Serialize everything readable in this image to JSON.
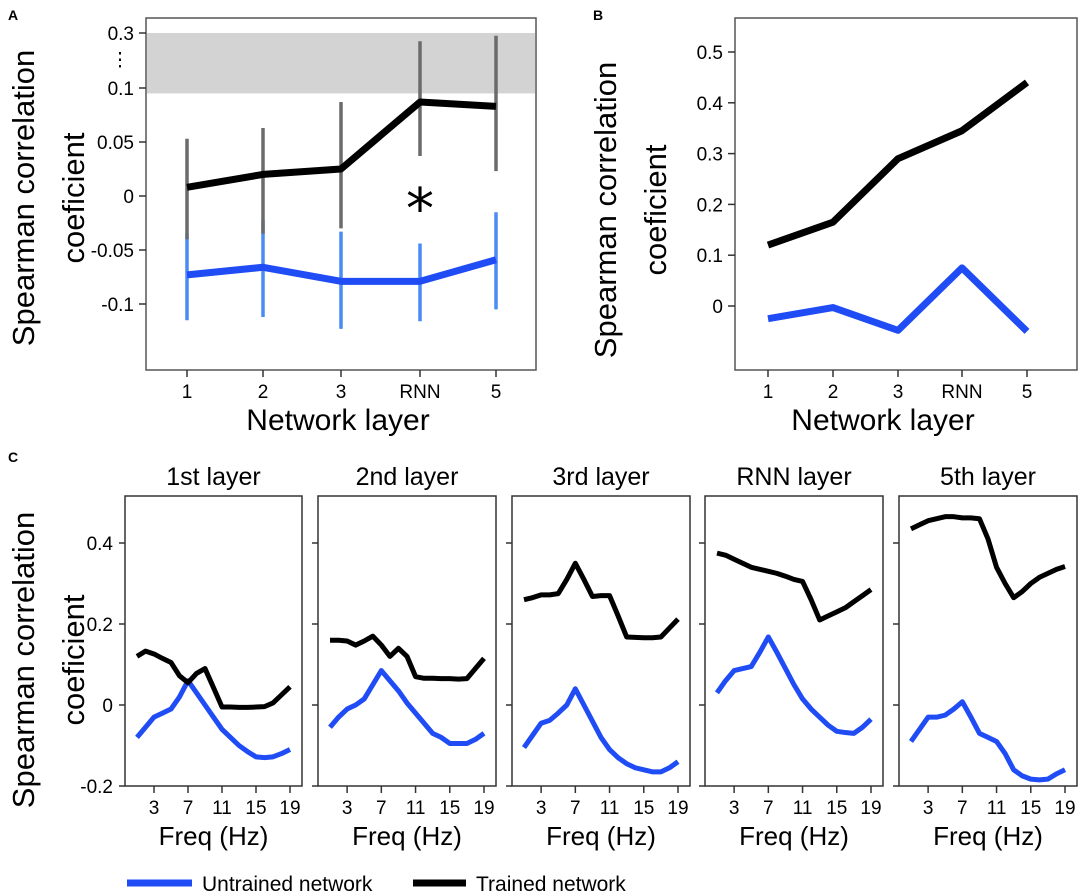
{
  "panels": {
    "a": "A",
    "b": "B",
    "c": "C"
  },
  "colors": {
    "untrained": "#1f4cf5",
    "trained": "#000000",
    "errUntrained": "#4a8cf5",
    "errTrained": "#6b6b6b",
    "band": "#d3d3d3"
  },
  "legend": {
    "untrained": "Untrained network",
    "trained": "Trained network"
  },
  "chart_data": [
    {
      "id": "A",
      "type": "line",
      "categories": [
        "1",
        "2",
        "3",
        "RNN",
        "5"
      ],
      "xlabel": "Network layer",
      "ylabel_line1": "Spearman correlation",
      "ylabel_line2": "coeficient",
      "y_ticks": [
        "0.3",
        "0.1",
        "0.05",
        "0",
        "-0.05",
        "-0.1"
      ],
      "axis_break": "⋮",
      "annotation": "*",
      "noise_ceiling_band": [
        0.095,
        0.3
      ],
      "series": [
        {
          "name": "Untrained network",
          "values": [
            -0.073,
            -0.066,
            -0.079,
            -0.079,
            -0.059
          ],
          "err_low": [
            -0.115,
            -0.112,
            -0.123,
            -0.116,
            -0.105
          ],
          "err_high": [
            -0.035,
            -0.022,
            -0.033,
            -0.044,
            -0.015
          ]
        },
        {
          "name": "Trained network",
          "values": [
            0.008,
            0.02,
            0.025,
            0.087,
            0.083
          ],
          "err_low": [
            -0.04,
            -0.035,
            -0.03,
            0.037,
            0.023
          ],
          "err_high": [
            0.053,
            0.063,
            0.087,
            0.27,
            0.29
          ]
        }
      ]
    },
    {
      "id": "B",
      "type": "line",
      "categories": [
        "1",
        "2",
        "3",
        "RNN",
        "5"
      ],
      "xlabel": "Network layer",
      "ylabel_line1": "Spearman correlation",
      "ylabel_line2": "coeficient",
      "y_ticks": [
        "0.5",
        "0.4",
        "0.3",
        "0.2",
        "0.1",
        "0"
      ],
      "series": [
        {
          "name": "Untrained network",
          "values": [
            -0.025,
            -0.003,
            -0.048,
            0.075,
            -0.05
          ]
        },
        {
          "name": "Trained network",
          "values": [
            0.12,
            0.165,
            0.29,
            0.345,
            0.44
          ]
        }
      ]
    },
    {
      "id": "C",
      "type": "line",
      "x": [
        1,
        2,
        3,
        4,
        5,
        6,
        7,
        8,
        9,
        10,
        11,
        12,
        13,
        14,
        15,
        16,
        17,
        18,
        19
      ],
      "x_ticks": [
        "3",
        "7",
        "11",
        "15",
        "19"
      ],
      "y_ticks": [
        "0.4",
        "0.2",
        "0",
        "-0.2"
      ],
      "ylim": [
        -0.2,
        0.5
      ],
      "xlabel": "Freq (Hz)",
      "ylabel_line1": "Spearman correlation",
      "ylabel_line2": "coeficient",
      "subplots": [
        {
          "title": "1st layer",
          "trained": [
            0.12,
            0.133,
            0.126,
            0.115,
            0.105,
            0.072,
            0.055,
            0.078,
            0.09,
            0.043,
            -0.005,
            -0.005,
            -0.006,
            -0.006,
            -0.005,
            -0.004,
            0.005,
            0.025,
            0.045
          ],
          "untrained": [
            -0.08,
            -0.055,
            -0.03,
            -0.02,
            -0.01,
            0.02,
            0.06,
            0.03,
            0.0,
            -0.03,
            -0.06,
            -0.08,
            -0.1,
            -0.115,
            -0.128,
            -0.13,
            -0.128,
            -0.12,
            -0.11
          ]
        },
        {
          "title": "2nd layer",
          "trained": [
            0.16,
            0.16,
            0.158,
            0.148,
            0.158,
            0.17,
            0.148,
            0.12,
            0.14,
            0.12,
            0.07,
            0.066,
            0.066,
            0.065,
            0.065,
            0.064,
            0.065,
            0.09,
            0.115
          ],
          "untrained": [
            -0.055,
            -0.03,
            -0.01,
            0.0,
            0.015,
            0.05,
            0.085,
            0.06,
            0.035,
            0.005,
            -0.02,
            -0.045,
            -0.07,
            -0.08,
            -0.095,
            -0.095,
            -0.095,
            -0.085,
            -0.07
          ]
        },
        {
          "title": "3rd layer",
          "trained": [
            0.26,
            0.265,
            0.272,
            0.272,
            0.275,
            0.31,
            0.35,
            0.31,
            0.268,
            0.27,
            0.27,
            0.22,
            0.168,
            0.167,
            0.166,
            0.166,
            0.168,
            0.19,
            0.212
          ],
          "untrained": [
            -0.105,
            -0.075,
            -0.045,
            -0.038,
            -0.02,
            0.0,
            0.04,
            0.0,
            -0.04,
            -0.08,
            -0.11,
            -0.13,
            -0.145,
            -0.155,
            -0.16,
            -0.165,
            -0.165,
            -0.155,
            -0.14
          ]
        },
        {
          "title": "RNN layer",
          "trained": [
            0.375,
            0.37,
            0.36,
            0.35,
            0.34,
            0.335,
            0.33,
            0.325,
            0.318,
            0.31,
            0.305,
            0.26,
            0.21,
            0.22,
            0.23,
            0.24,
            0.255,
            0.27,
            0.285
          ],
          "untrained": [
            0.03,
            0.06,
            0.085,
            0.09,
            0.095,
            0.13,
            0.168,
            0.13,
            0.09,
            0.05,
            0.015,
            -0.01,
            -0.03,
            -0.05,
            -0.065,
            -0.068,
            -0.07,
            -0.055,
            -0.035
          ]
        },
        {
          "title": "5th layer",
          "trained": [
            0.435,
            0.445,
            0.455,
            0.46,
            0.465,
            0.465,
            0.462,
            0.462,
            0.46,
            0.41,
            0.34,
            0.3,
            0.265,
            0.28,
            0.3,
            0.315,
            0.325,
            0.335,
            0.342
          ],
          "untrained": [
            -0.09,
            -0.06,
            -0.03,
            -0.03,
            -0.025,
            -0.01,
            0.008,
            -0.03,
            -0.07,
            -0.08,
            -0.09,
            -0.12,
            -0.16,
            -0.175,
            -0.183,
            -0.185,
            -0.183,
            -0.17,
            -0.16
          ]
        }
      ]
    }
  ]
}
